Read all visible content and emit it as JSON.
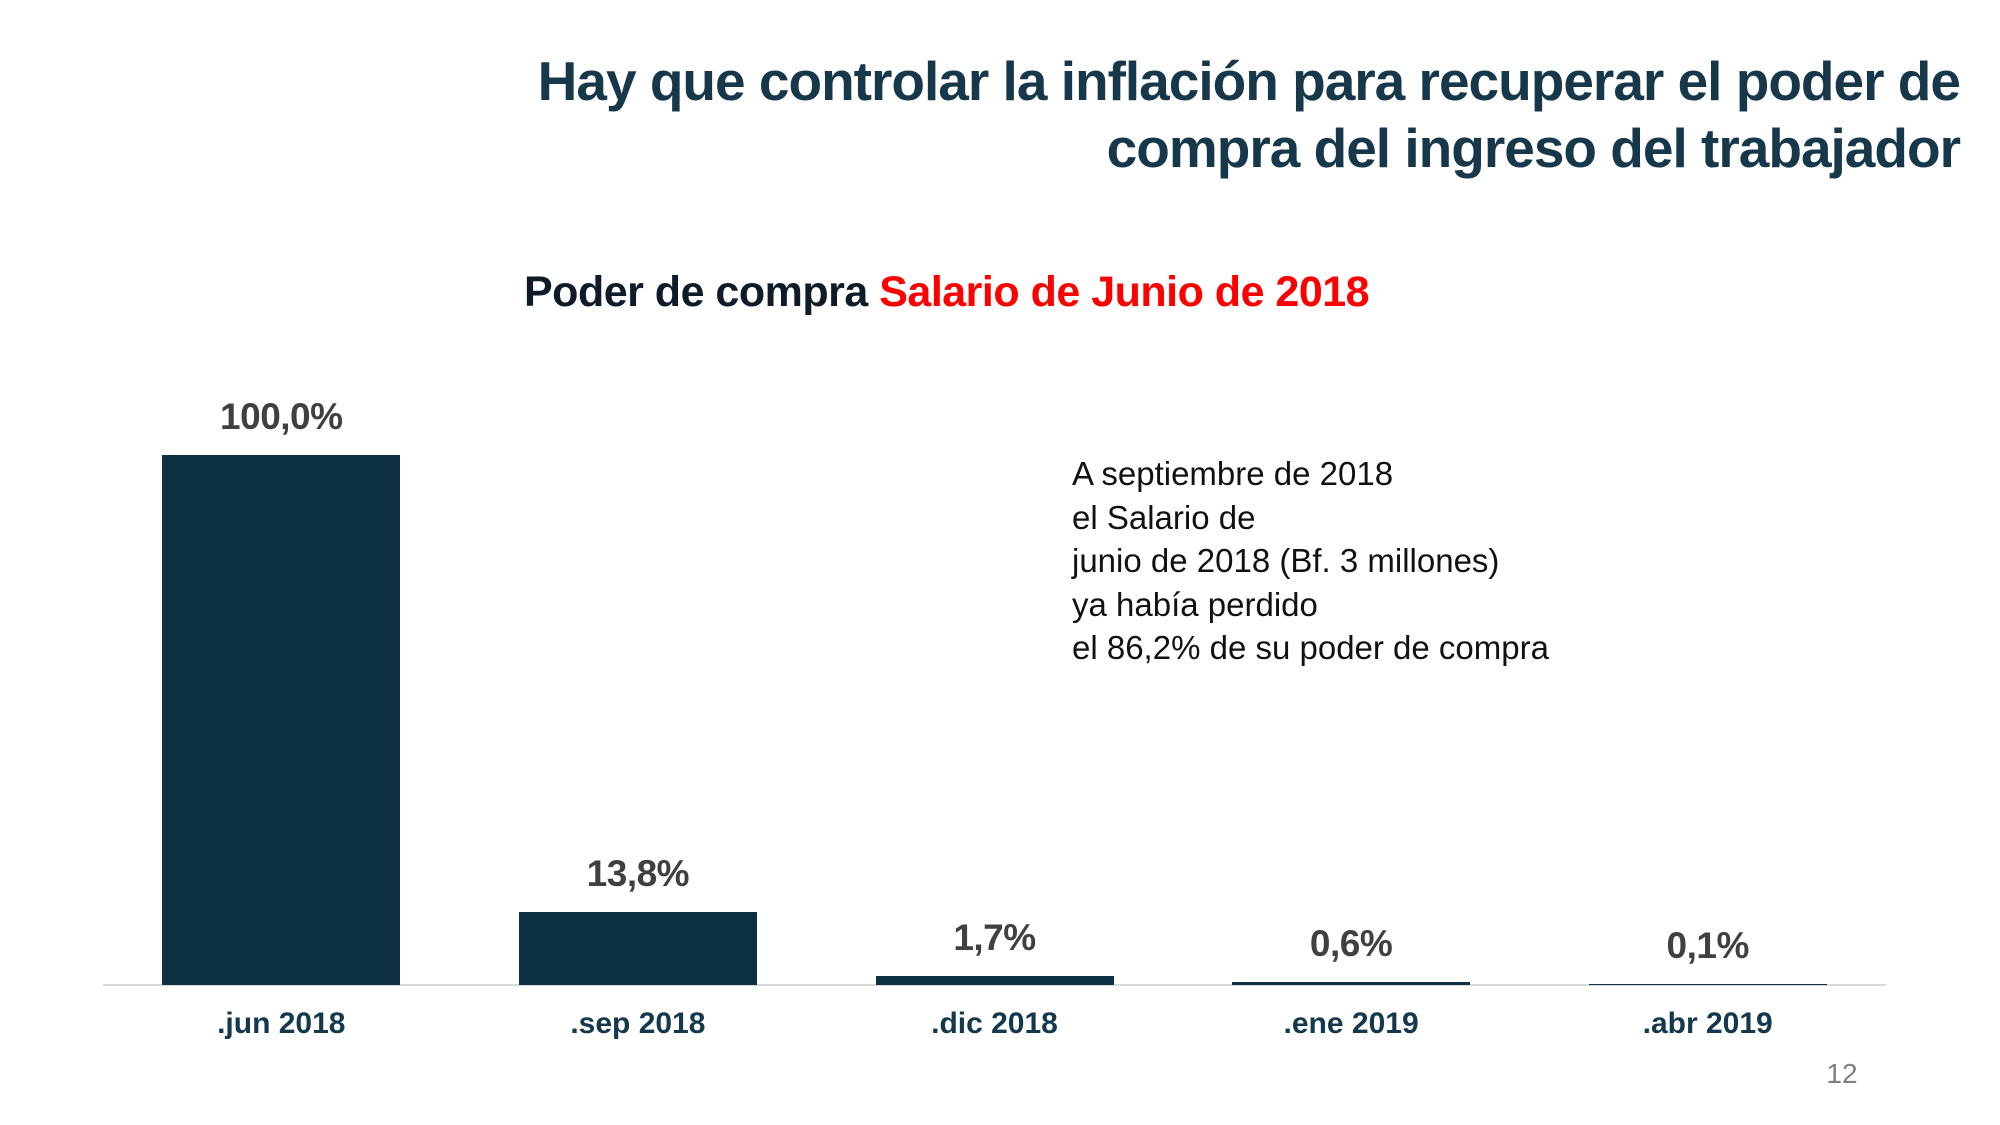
{
  "slide": {
    "title": "Hay que controlar la inflación para recuperar el poder de\ncompra del ingreso del trabajador",
    "page_number": "12"
  },
  "chart_title": {
    "prefix": "Poder de compra ",
    "highlight": "Salario de Junio de 2018"
  },
  "annotation": {
    "text": "A septiembre de 2018\nel Salario de\njunio de 2018 (Bf. 3 millones)\n ya había perdido\nel 86,2% de su poder de compra"
  },
  "chart_data": {
    "type": "bar",
    "title": "Poder de compra Salario de Junio de 2018",
    "categories": [
      ".jun 2018",
      ".sep 2018",
      ".dic 2018",
      ".ene 2019",
      ".abr 2019"
    ],
    "values": [
      100.0,
      13.8,
      1.7,
      0.6,
      0.1
    ],
    "value_labels": [
      "100,0%",
      "13,8%",
      "1,7%",
      "0,6%",
      "0,1%"
    ],
    "xlabel": "",
    "ylabel": "",
    "ylim": [
      0,
      100
    ],
    "grid": false,
    "legend": false,
    "bar_color": "#0e3043",
    "value_label_color": "#404040",
    "category_label_color": "#14384c",
    "axis_line_color": "#d9d9d9"
  },
  "colors": {
    "background": "#ffffff",
    "title": "#17384a",
    "chart_title_text": "#0e1c2a",
    "chart_title_highlight": "#fe0000",
    "annotation_text": "#111111",
    "page_number": "#7f7f7f"
  }
}
